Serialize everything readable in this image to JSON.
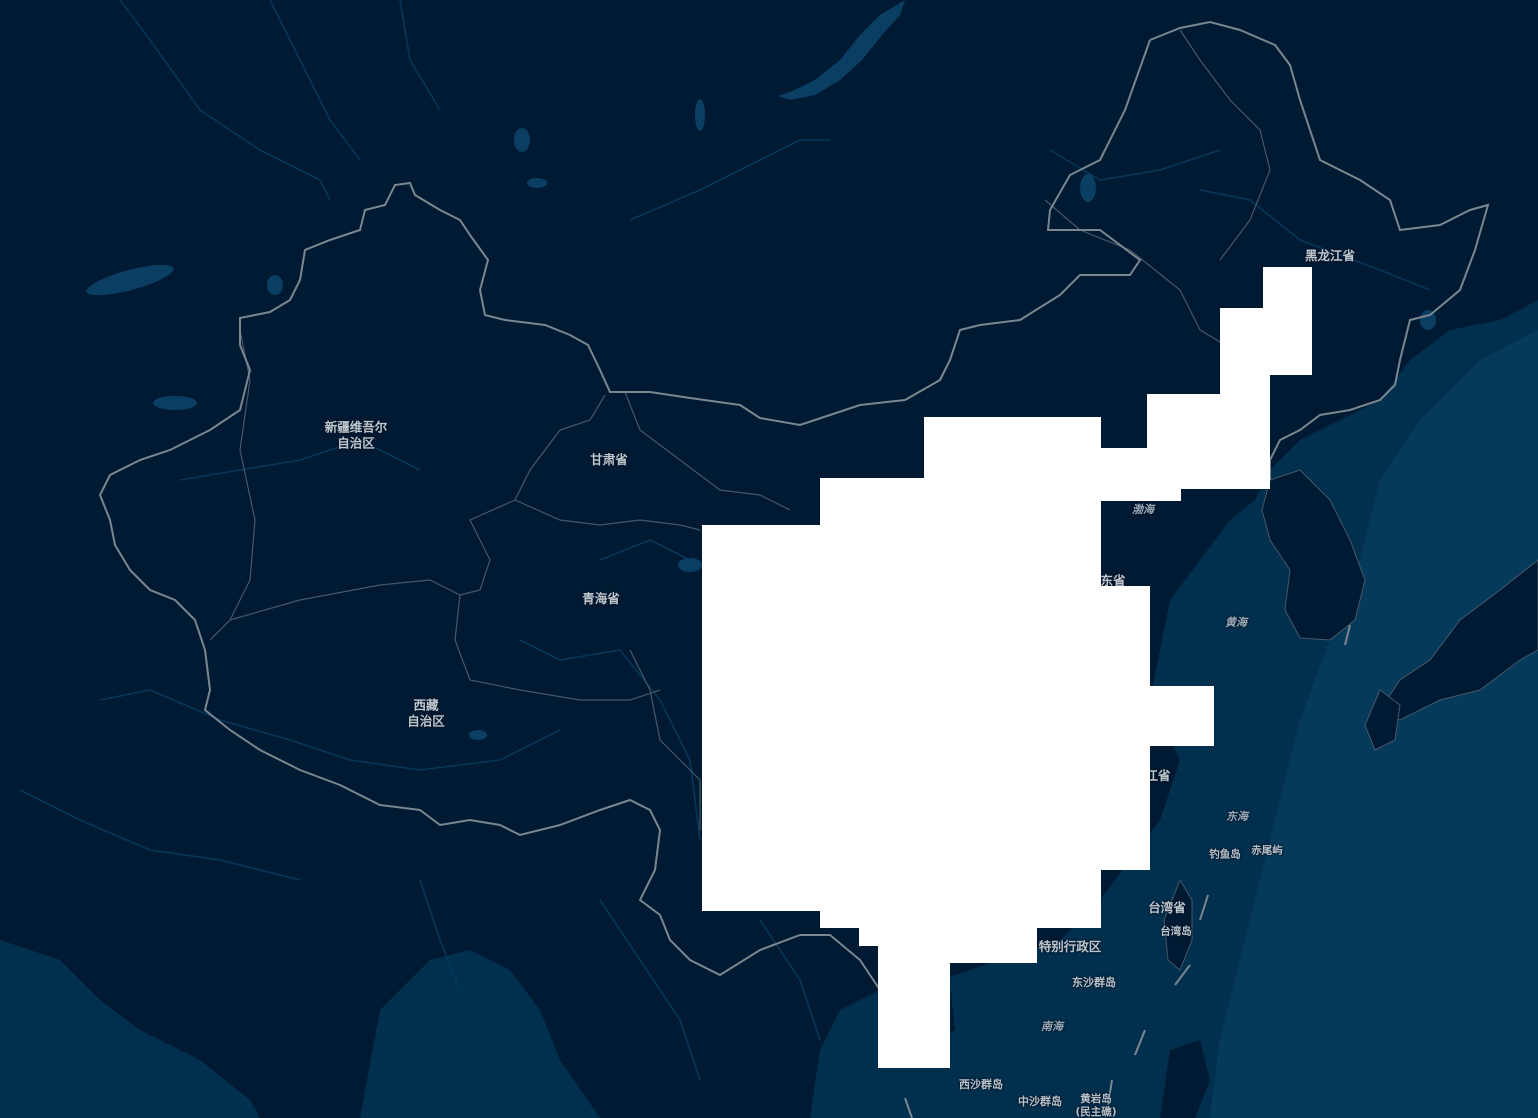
{
  "map": {
    "colors": {
      "land": "#001a33",
      "water_deep": "#00304d",
      "water_shallow": "#0a4466",
      "lake": "#0b3e63",
      "river": "#06375a",
      "boundary": "#6e7c88",
      "inner_boundary": "#465868",
      "label": "#c3c9cf",
      "overlay": "#ffffff"
    },
    "labels": {
      "xinjiang": "新疆维吾尔\n自治区",
      "gansu": "甘肃省",
      "qinghai": "青海省",
      "xizang": "西藏\n自治区",
      "heilongjiang": "黑龙江省",
      "bohai": "渤海",
      "shandong_partial": "东省",
      "huanghai": "黄海",
      "zhejiang_partial": "江省",
      "donghai": "东海",
      "diaoyudao": "钓鱼岛",
      "chiweiyu": "赤尾屿",
      "taiwan_province": "台湾省",
      "taiwan_island": "台湾岛",
      "sar_partial": "特别行政区",
      "dongsha": "东沙群岛",
      "nanhai": "南海",
      "xisha": "西沙群岛",
      "zhongsha": "中沙群岛",
      "huangyan": "黄岩岛\n(民主礁)"
    },
    "icons": {
      "overlay": "unloaded-tile-block"
    }
  }
}
